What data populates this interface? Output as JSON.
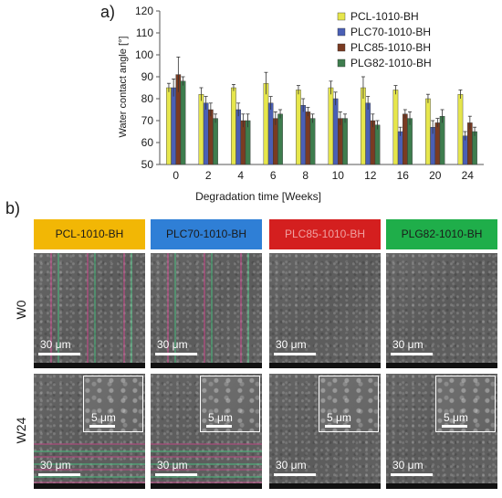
{
  "panel_a_label": "a)",
  "panel_b_label": "b)",
  "chart_data": {
    "type": "bar",
    "title": "",
    "xlabel": "Degradation time [Weeks]",
    "ylabel": "Water contact angle [°]",
    "ylim": [
      50,
      120
    ],
    "yticks": [
      50,
      60,
      70,
      80,
      90,
      100,
      110,
      120
    ],
    "categories": [
      "0",
      "2",
      "4",
      "6",
      "8",
      "10",
      "12",
      "16",
      "20",
      "24"
    ],
    "legend_position": "top-right",
    "grid": false,
    "series": [
      {
        "name": "PCL-1010-BH",
        "color": "#e6e64c",
        "values": [
          85,
          82,
          85,
          87,
          84,
          85,
          85,
          84,
          80,
          82
        ],
        "errors": [
          2,
          3,
          1.5,
          5,
          2,
          3,
          5,
          2,
          2,
          2
        ]
      },
      {
        "name": "PLC70-1010-BH",
        "color": "#4a5fb5",
        "values": [
          85,
          78,
          75,
          78,
          77,
          80,
          78,
          65,
          67,
          63
        ],
        "errors": [
          4,
          3,
          3,
          3,
          3,
          3,
          3,
          2,
          3,
          2
        ]
      },
      {
        "name": "PLC85-1010-BH",
        "color": "#7a3b22",
        "values": [
          91,
          75,
          70,
          71,
          74,
          71,
          70,
          73,
          69,
          69
        ],
        "errors": [
          8,
          3,
          3,
          3,
          2,
          3,
          3,
          2,
          2,
          3
        ]
      },
      {
        "name": "PLG82-1010-BH",
        "color": "#3e7d4e",
        "values": [
          88,
          71,
          70,
          73,
          71,
          71,
          68,
          71,
          72,
          65
        ],
        "errors": [
          2,
          2,
          3,
          2,
          2,
          2,
          2,
          3,
          3,
          2
        ]
      }
    ]
  },
  "sem": {
    "columns": [
      {
        "label": "PCL-1010-BH",
        "color": "#f2b705",
        "text_color": "#1a1a1a"
      },
      {
        "label": "PLC70-1010-BH",
        "color": "#2f7fd6",
        "text_color": "#1a1a1a"
      },
      {
        "label": "PLC85-1010-BH",
        "color": "#d41f1f",
        "text_color": "#f0a0a0"
      },
      {
        "label": "PLG82-1010-BH",
        "color": "#1fae4a",
        "text_color": "#1a1a1a"
      }
    ],
    "rows": [
      {
        "label": "W0",
        "scale": "30 μm"
      },
      {
        "label": "W24",
        "scale": "30 μm",
        "inset_scale": "5 μm"
      }
    ]
  }
}
